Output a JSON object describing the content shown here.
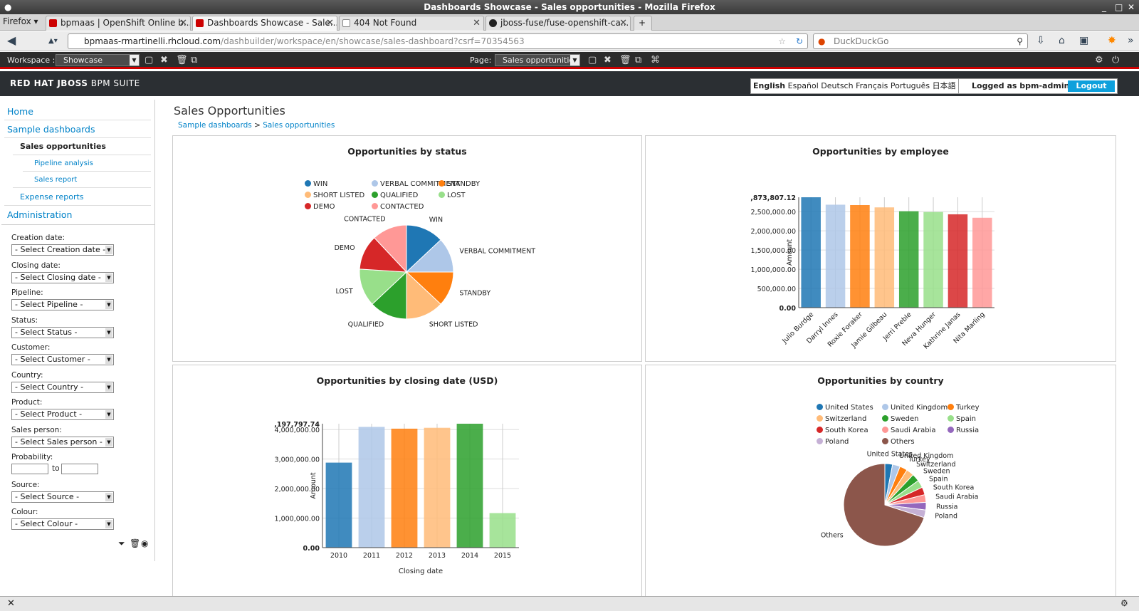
{
  "window": {
    "title": "Dashboards Showcase - Sales opportunities - Mozilla Firefox",
    "menu": "Firefox"
  },
  "tabs": [
    {
      "label": "bpmaas | OpenShift Online b...",
      "fav": "#c00"
    },
    {
      "label": "Dashboards Showcase - Sale...",
      "fav": "#c00"
    },
    {
      "label": "404 Not Found",
      "fav": "#fff"
    },
    {
      "label": "jboss-fuse/fuse-openshift-ca...",
      "fav": "#222"
    }
  ],
  "url": {
    "host": "bpmaas-rmartinelli.rhcloud.com",
    "path": "/dashbuilder/workspace/en/showcase/sales-dashboard?csrf=70354563"
  },
  "search": {
    "placeholder": "DuckDuckGo"
  },
  "workspace_bar": {
    "workspace_label": "Workspace :",
    "workspace_value": "Showcase",
    "page_label": "Page:",
    "page_value": "Sales opportunities"
  },
  "brand": {
    "strong": "RED HAT JBOSS",
    "light": "BPM SUITE"
  },
  "languages": {
    "current": "English",
    "others": "Español Deutsch Français Português 日本語 中文"
  },
  "user": {
    "logged": "Logged as bpm-admin",
    "logout": "Logout"
  },
  "nav": {
    "home": "Home",
    "sample": "Sample dashboards",
    "sales": "Sales opportunities",
    "pipeline": "Pipeline analysis",
    "report": "Sales report",
    "expense": "Expense reports",
    "admin": "Administration"
  },
  "filters": [
    {
      "label": "Creation date:",
      "value": "- Select Creation date -"
    },
    {
      "label": "Closing date:",
      "value": "- Select Closing date -"
    },
    {
      "label": "Pipeline:",
      "value": "- Select Pipeline -"
    },
    {
      "label": "Status:",
      "value": "- Select Status -"
    },
    {
      "label": "Customer:",
      "value": "- Select Customer -"
    },
    {
      "label": "Country:",
      "value": "- Select Country -"
    },
    {
      "label": "Product:",
      "value": "- Select Product -"
    },
    {
      "label": "Sales person:",
      "value": "- Select Sales person -"
    },
    {
      "label": "Probability:",
      "value": ""
    },
    {
      "label": "Source:",
      "value": "- Select Source -"
    },
    {
      "label": "Colour:",
      "value": "- Select Colour -"
    }
  ],
  "probability_to": "to",
  "page": {
    "title": "Sales Opportunities",
    "crumb1": "Sample dashboards",
    "crumb_sep": ">",
    "crumb2": "Sales opportunities"
  },
  "chart_data": [
    {
      "type": "pie",
      "title": "Opportunities by status",
      "categories": [
        "WIN",
        "VERBAL COMMITMENT",
        "STANDBY",
        "SHORT LISTED",
        "QUALIFIED",
        "LOST",
        "DEMO",
        "CONTACTED"
      ],
      "values": [
        13,
        12,
        12,
        13,
        13,
        13,
        12,
        12
      ],
      "colors": [
        "#1f77b4",
        "#aec7e8",
        "#ff7f0e",
        "#ffbb78",
        "#2ca02c",
        "#98df8a",
        "#d62728",
        "#ff9896"
      ],
      "legend": "top"
    },
    {
      "type": "bar",
      "title": "Opportunities by employee",
      "categories": [
        "Julio Burdge",
        "Darryl Innes",
        "Roxie Foraker",
        "Jamie Gilbeau",
        "Jerri Preble",
        "Neva Hunger",
        "Kathrine Janas",
        "Nita Marling"
      ],
      "values": [
        2873807.12,
        2680000,
        2670000,
        2610000,
        2510000,
        2490000,
        2430000,
        2340000
      ],
      "colors": [
        "#1f77b4",
        "#aec7e8",
        "#ff7f0e",
        "#ffbb78",
        "#2ca02c",
        "#98df8a",
        "#d62728",
        "#ff9896"
      ],
      "ylabel": "Amount",
      "ytick_labels": [
        "0.00",
        "500,000.00",
        "1,000,000.00",
        "1,500,000.00",
        "2,000,000.00",
        "2,500,000.00"
      ],
      "ytick_values": [
        0,
        500000,
        1000000,
        1500000,
        2000000,
        2500000
      ],
      "ymax_label": ",873,807.12",
      "ylim": [
        0,
        2873807.12
      ]
    },
    {
      "type": "bar",
      "title": "Opportunities by closing date (USD)",
      "categories": [
        "2010",
        "2011",
        "2012",
        "2013",
        "2014",
        "2015"
      ],
      "values": [
        2880000,
        4090000,
        4030000,
        4060000,
        4197797.74,
        1170000
      ],
      "colors": [
        "#1f77b4",
        "#aec7e8",
        "#ff7f0e",
        "#ffbb78",
        "#2ca02c",
        "#98df8a"
      ],
      "xlabel": "Closing date",
      "ylabel": "Amount",
      "ytick_labels": [
        "0.00",
        "1,000,000.00",
        "2,000,000.00",
        "3,000,000.00",
        "4,000,000.00"
      ],
      "ytick_values": [
        0,
        1000000,
        2000000,
        3000000,
        4000000
      ],
      "ymax_label": ",197,797.74",
      "ylim": [
        0,
        4197797.74
      ]
    },
    {
      "type": "pie",
      "title": "Opportunities by country",
      "categories": [
        "United States",
        "United Kingdom",
        "Turkey",
        "Switzerland",
        "Sweden",
        "Spain",
        "South Korea",
        "Saudi Arabia",
        "Russia",
        "Poland",
        "Others"
      ],
      "values": [
        3,
        3,
        3,
        3,
        3,
        3,
        3,
        3,
        3,
        3,
        70
      ],
      "colors": [
        "#1f77b4",
        "#aec7e8",
        "#ff7f0e",
        "#ffbb78",
        "#2ca02c",
        "#98df8a",
        "#d62728",
        "#ff9896",
        "#9467bd",
        "#c5b0d5",
        "#8c564b"
      ],
      "legend": "top"
    }
  ]
}
